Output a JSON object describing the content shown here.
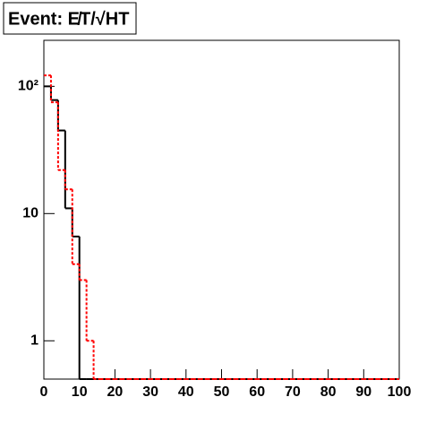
{
  "chart_data": {
    "type": "histogram",
    "title": "Event: E̸T/√HT",
    "bins": [
      0,
      2,
      4,
      6,
      8,
      10,
      12,
      14,
      16,
      18,
      20,
      22,
      24,
      26,
      28,
      30,
      32,
      34,
      36,
      38,
      40,
      42,
      44,
      46,
      48,
      50,
      52,
      54,
      56,
      58,
      60,
      62,
      64,
      66,
      68,
      70,
      72,
      74,
      76,
      78,
      80,
      82,
      84,
      86,
      88,
      90,
      92,
      94,
      96,
      98,
      100
    ],
    "series": [
      {
        "color": "#000000",
        "values": [
          100,
          78,
          45,
          11,
          6.6,
          0,
          0,
          0,
          0,
          0,
          0,
          0,
          0,
          0,
          0,
          0,
          0,
          0,
          0,
          0,
          0,
          0,
          0,
          0,
          0,
          0,
          0,
          0,
          0,
          0,
          0,
          0,
          0,
          0,
          0,
          0,
          0,
          0,
          0,
          0,
          0,
          0,
          0,
          0,
          0,
          0,
          0,
          0,
          0,
          0
        ]
      },
      {
        "color": "#ff0000",
        "values": [
          122,
          75,
          22,
          15.5,
          4,
          3,
          1,
          0,
          0,
          0,
          0,
          0,
          0,
          0,
          0,
          0,
          0,
          0,
          0,
          0,
          0,
          0,
          0,
          0,
          0,
          0,
          0,
          0,
          0,
          0,
          0,
          0,
          0,
          0,
          0,
          0,
          0,
          0,
          0,
          0,
          0,
          0,
          0,
          0,
          0,
          0,
          0,
          0,
          0,
          0
        ]
      }
    ],
    "xlim": [
      0,
      100
    ],
    "xticks": [
      0,
      10,
      20,
      30,
      40,
      50,
      60,
      70,
      80,
      90,
      100
    ],
    "ylim": [
      0.5,
      230
    ],
    "yticks": [
      1,
      10,
      {
        "value": 100,
        "label": "10²"
      }
    ],
    "log_y": true
  }
}
